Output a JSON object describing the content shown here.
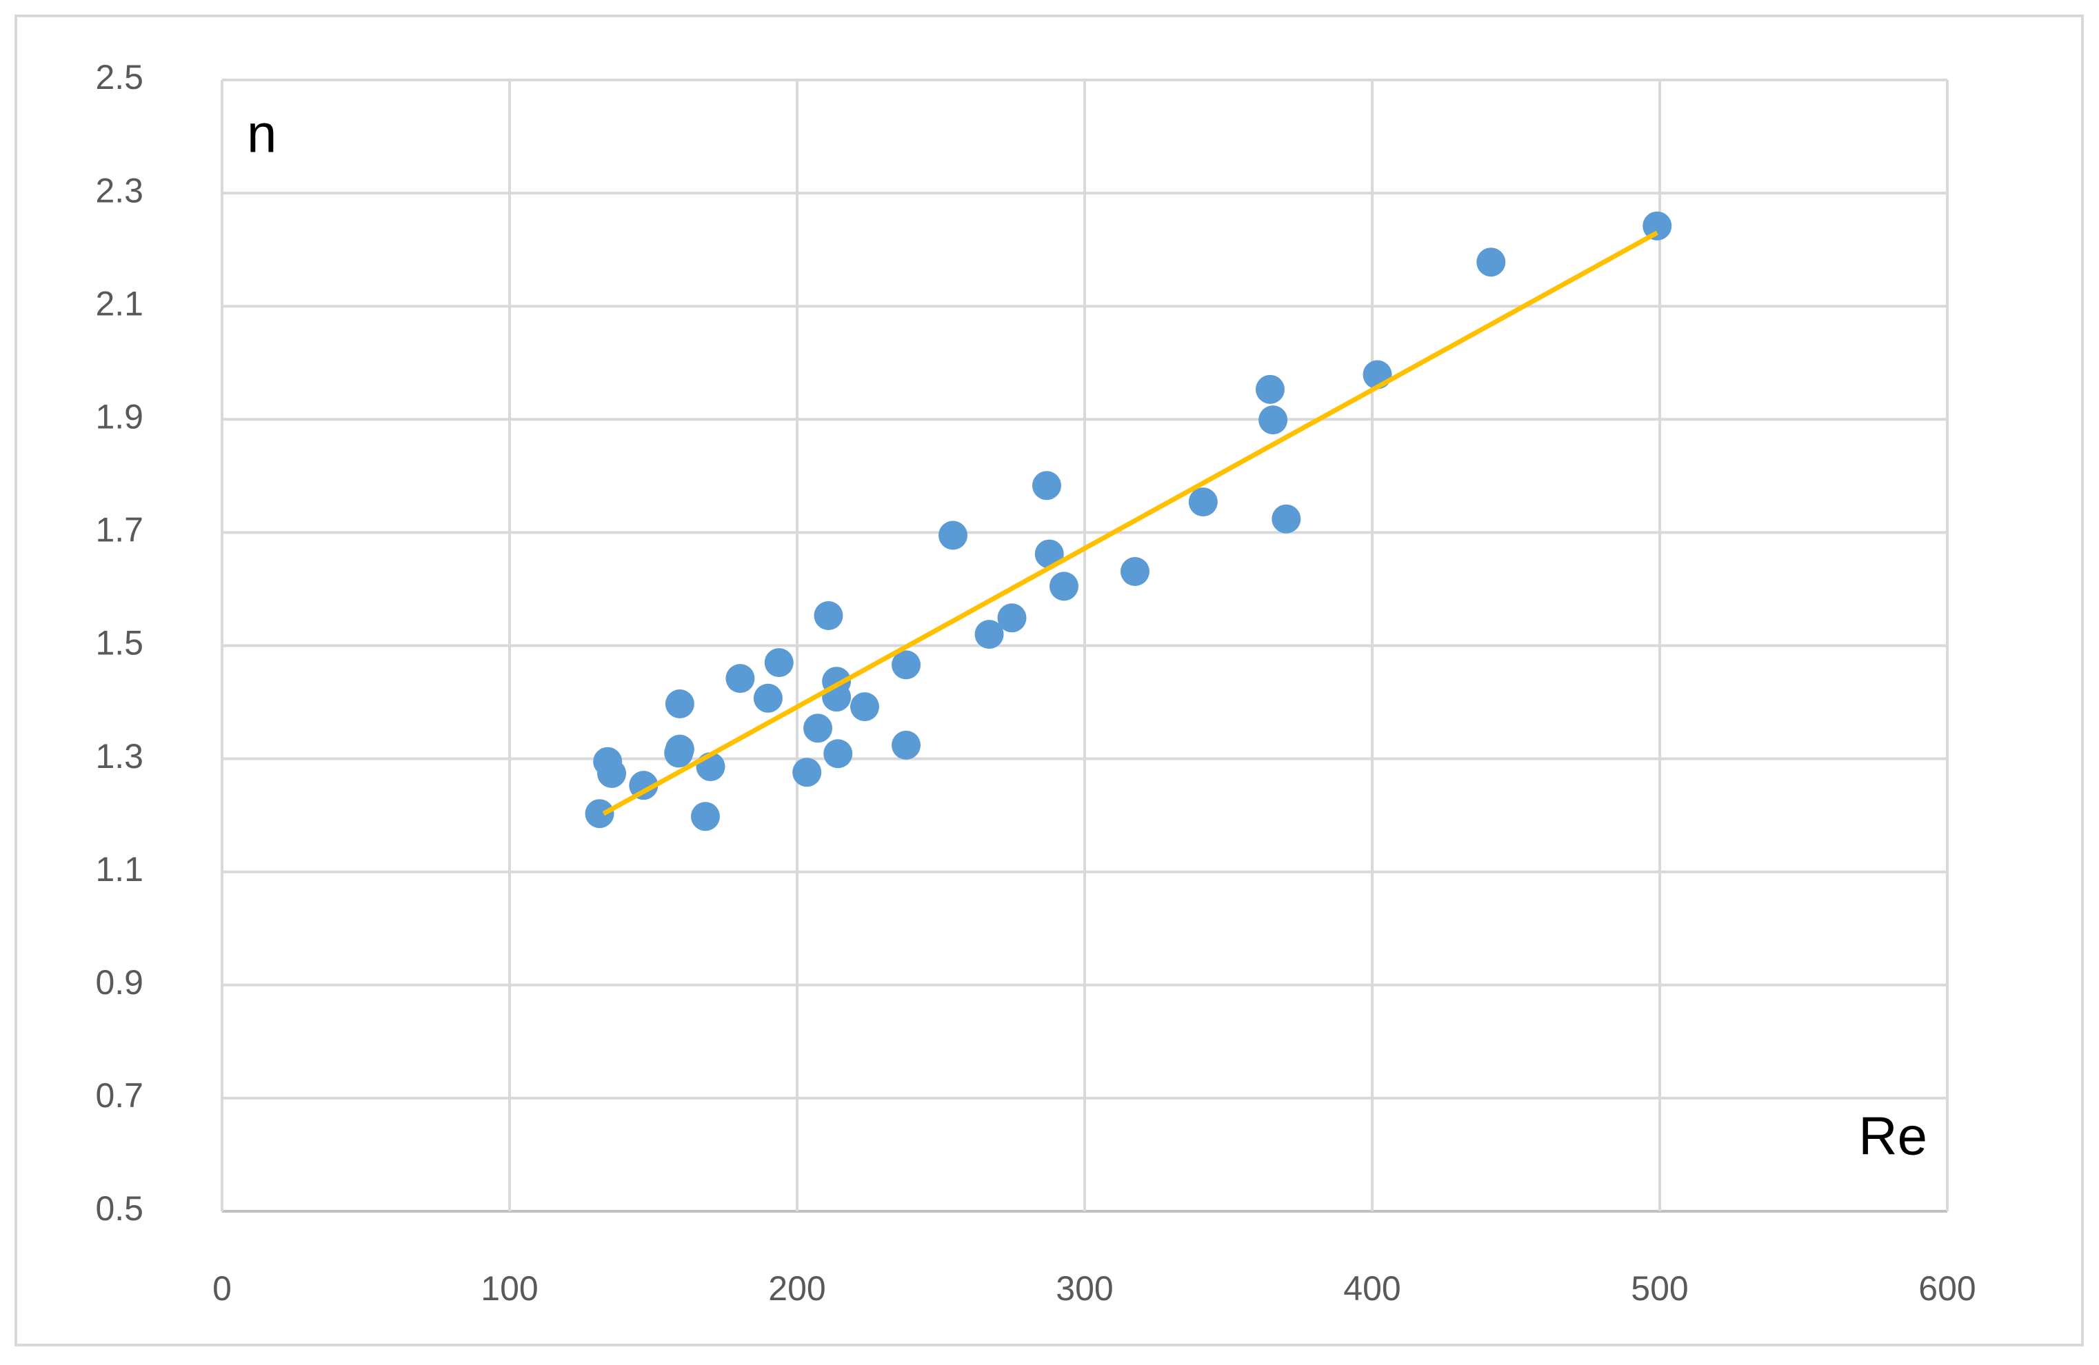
{
  "chart_data": {
    "type": "scatter",
    "x_annotation": "Re",
    "y_annotation": "n",
    "series": [
      {
        "color": "#5b9bd5",
        "x": [
          131.3,
          134.1,
          135.5,
          146.6,
          159.2,
          159.2,
          158.8,
          169.9,
          168.1,
          180.2,
          189.9,
          193.7,
          203.4,
          207.2,
          210.9,
          213.7,
          213.7,
          214.2,
          223.5,
          237.9,
          237.9,
          254.2,
          266.8,
          274.7,
          286.8,
          287.7,
          292.8,
          317.5,
          341.2,
          364.5,
          365.5,
          370.1,
          401.8,
          441.3,
          499.1
        ],
        "values": [
          1.203,
          1.295,
          1.274,
          1.253,
          1.397,
          1.317,
          1.31,
          1.286,
          1.198,
          1.442,
          1.407,
          1.47,
          1.276,
          1.354,
          1.553,
          1.437,
          1.409,
          1.309,
          1.392,
          1.466,
          1.324,
          1.695,
          1.52,
          1.549,
          1.783,
          1.662,
          1.605,
          1.631,
          1.754,
          1.953,
          1.899,
          1.724,
          1.979,
          2.178,
          2.242
        ]
      }
    ],
    "trendline": {
      "color": "#ffc000",
      "x": [
        132.7,
        499.1
      ],
      "values": [
        1.203,
        2.23
      ]
    },
    "xlim": [
      0,
      600
    ],
    "xticks": [
      0,
      100,
      200,
      300,
      400,
      500,
      600
    ],
    "ylim": [
      0.5,
      2.5
    ],
    "yticks": [
      0.5,
      0.7,
      0.9,
      1.1,
      1.3,
      1.5,
      1.7,
      1.9,
      2.1,
      2.3,
      2.5
    ],
    "grid": true
  }
}
